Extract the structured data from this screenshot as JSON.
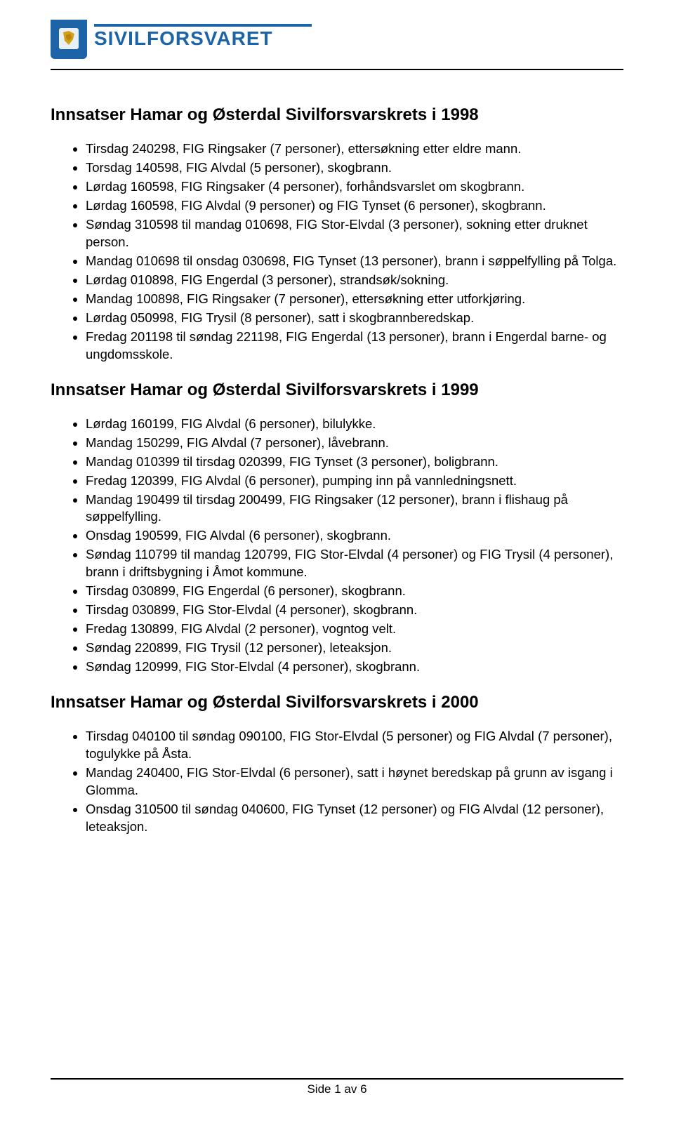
{
  "logo": {
    "brand_text": "SIVILFORSVARET",
    "emblem_bg": "#1d63a8",
    "text_color": "#1d63a8"
  },
  "sections": [
    {
      "title": "Innsatser Hamar og Østerdal Sivilforsvarskrets i 1998",
      "items": [
        "Tirsdag 240298, FIG Ringsaker (7 personer), ettersøkning etter eldre mann.",
        "Torsdag 140598, FIG Alvdal (5 personer), skogbrann.",
        "Lørdag 160598, FIG Ringsaker (4 personer), forhåndsvarslet om skogbrann.",
        "Lørdag 160598, FIG Alvdal (9 personer) og FIG Tynset (6 personer), skogbrann.",
        "Søndag 310598 til mandag 010698, FIG Stor-Elvdal (3 personer), sokning etter druknet person.",
        "Mandag 010698 til onsdag 030698, FIG Tynset (13 personer), brann i søppelfylling på Tolga.",
        "Lørdag 010898, FIG Engerdal (3 personer), strandsøk/sokning.",
        "Mandag 100898, FIG Ringsaker (7 personer), ettersøkning etter utforkjøring.",
        "Lørdag 050998, FIG Trysil (8 personer), satt i skogbrannberedskap.",
        "Fredag 201198 til søndag 221198, FIG Engerdal (13 personer), brann i Engerdal barne- og ungdomsskole."
      ]
    },
    {
      "title": "Innsatser Hamar og Østerdal Sivilforsvarskrets i 1999",
      "items": [
        "Lørdag 160199, FIG Alvdal (6 personer), bilulykke.",
        "Mandag 150299, FIG Alvdal (7 personer), låvebrann.",
        "Mandag 010399 til tirsdag 020399, FIG Tynset (3 personer), boligbrann.",
        "Fredag 120399, FIG Alvdal (6 personer), pumping inn på vannledningsnett.",
        "Mandag 190499 til tirsdag 200499, FIG Ringsaker (12 personer), brann i flishaug på søppelfylling.",
        "Onsdag 190599, FIG Alvdal (6 personer), skogbrann.",
        "Søndag 110799 til mandag 120799, FIG Stor-Elvdal (4 personer) og FIG Trysil (4 personer), brann i driftsbygning i Åmot kommune.",
        "Tirsdag 030899, FIG Engerdal (6 personer), skogbrann.",
        "Tirsdag 030899, FIG Stor-Elvdal (4 personer), skogbrann.",
        "Fredag 130899, FIG Alvdal (2 personer), vogntog velt.",
        "Søndag 220899, FIG Trysil (12 personer), leteaksjon.",
        "Søndag 120999, FIG Stor-Elvdal (4 personer), skogbrann."
      ]
    },
    {
      "title": "Innsatser Hamar og Østerdal Sivilforsvarskrets i 2000",
      "items": [
        "Tirsdag 040100 til søndag 090100, FIG Stor-Elvdal (5 personer) og FIG Alvdal (7 personer), togulykke på Åsta.",
        "Mandag 240400, FIG Stor-Elvdal (6 personer), satt i høynet beredskap på grunn av isgang i Glomma.",
        "Onsdag 310500 til søndag 040600, FIG Tynset (12 personer) og FIG Alvdal (12 personer), leteaksjon."
      ]
    }
  ],
  "footer": {
    "text": "Side 1 av 6"
  }
}
